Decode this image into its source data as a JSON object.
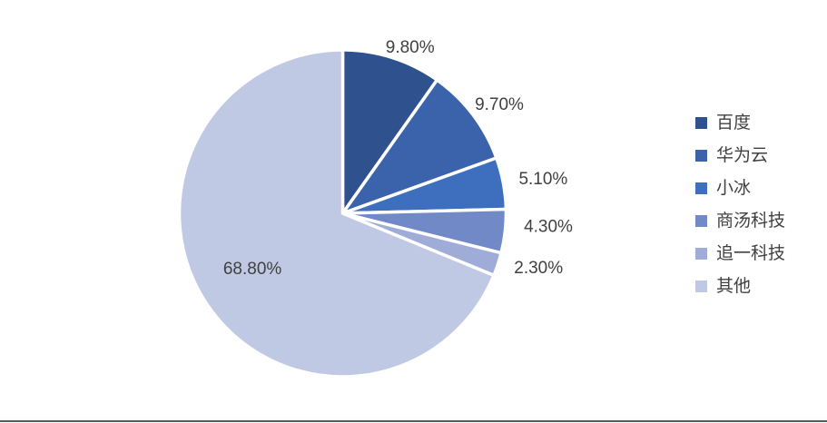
{
  "chart_data": {
    "type": "pie",
    "title": "",
    "categories": [
      "百度",
      "华为云",
      "小冰",
      "商汤科技",
      "追一科技",
      "其他"
    ],
    "values": [
      9.8,
      9.7,
      5.1,
      4.3,
      2.3,
      68.8
    ],
    "labels": [
      "9.80%",
      "9.70%",
      "5.10%",
      "4.30%",
      "2.30%",
      "68.80%"
    ],
    "colors": [
      "#2F518E",
      "#3A63AC",
      "#3E6FBE",
      "#7289C7",
      "#9FACD7",
      "#BFC9E4"
    ],
    "start_angle_deg": 0,
    "direction": "clockwise",
    "slice_border_color": "#FFFFFF",
    "label_color": "#404040",
    "legend_position": "right",
    "label_placement": "outside-end, last slice inside"
  },
  "page": {
    "background": "#FFFFFF",
    "bottom_rule_color": "#4A6556"
  }
}
